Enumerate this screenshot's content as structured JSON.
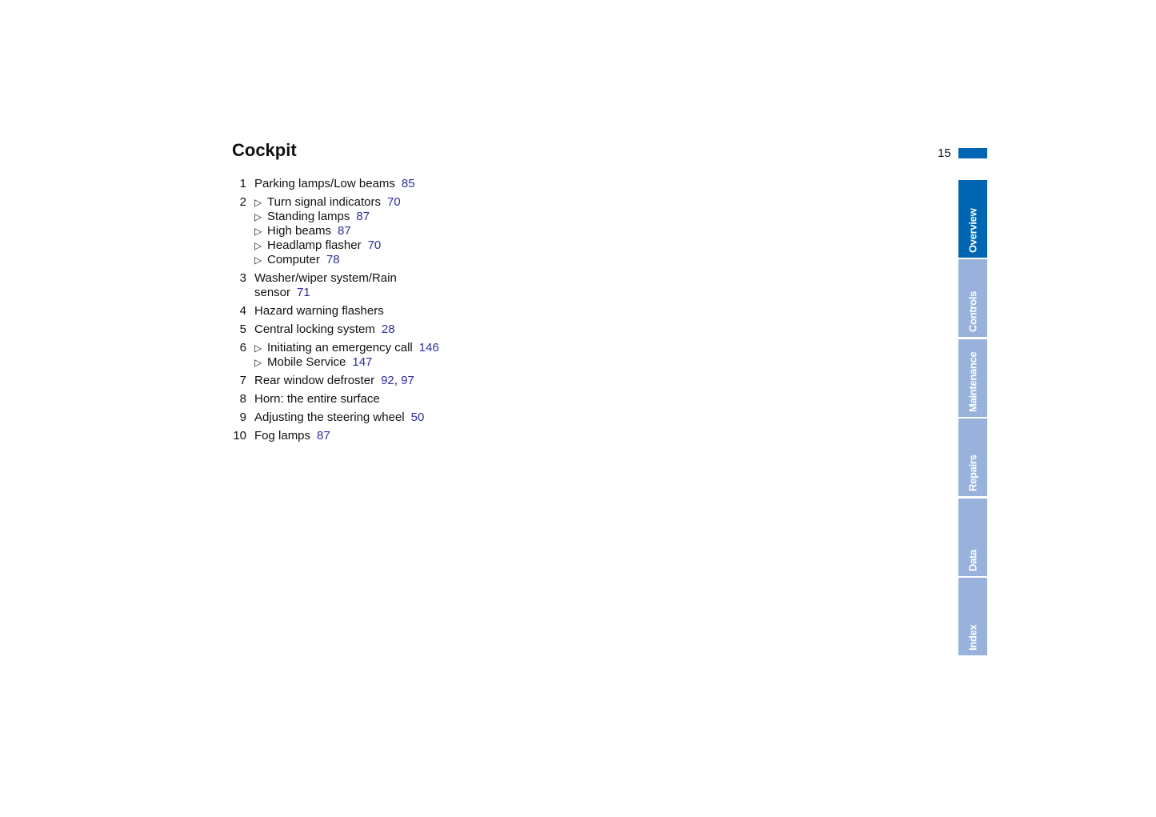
{
  "title": "Cockpit",
  "page_number": "15",
  "colors": {
    "accent": "#0066b3",
    "tab_inactive": "#98b2dc",
    "link": "#2e2e9e"
  },
  "items": [
    {
      "num": "1",
      "lines": [
        {
          "text": "Parking lamps/Low beams",
          "refs": [
            "85"
          ]
        }
      ]
    },
    {
      "num": "2",
      "sub": [
        {
          "text": "Turn signal indicators",
          "refs": [
            "70"
          ]
        },
        {
          "text": "Standing lamps",
          "refs": [
            "87"
          ]
        },
        {
          "text": "High beams",
          "refs": [
            "87"
          ]
        },
        {
          "text": "Headlamp flasher",
          "refs": [
            "70"
          ]
        },
        {
          "text": "Computer",
          "refs": [
            "78"
          ]
        }
      ]
    },
    {
      "num": "3",
      "lines": [
        {
          "text": "Washer/wiper system/Rain",
          "refs": []
        },
        {
          "text": "sensor",
          "refs": [
            "71"
          ]
        }
      ]
    },
    {
      "num": "4",
      "lines": [
        {
          "text": "Hazard warning flashers",
          "refs": []
        }
      ]
    },
    {
      "num": "5",
      "lines": [
        {
          "text": "Central locking system",
          "refs": [
            "28"
          ]
        }
      ]
    },
    {
      "num": "6",
      "sub": [
        {
          "text": "Initiating an emergency call",
          "refs": [
            "146"
          ]
        },
        {
          "text": "Mobile Service",
          "refs": [
            "147"
          ]
        }
      ]
    },
    {
      "num": "7",
      "lines": [
        {
          "text": "Rear window defroster",
          "refs": [
            "92",
            "97"
          ]
        }
      ]
    },
    {
      "num": "8",
      "lines": [
        {
          "text": "Horn: the entire surface",
          "refs": []
        }
      ]
    },
    {
      "num": "9",
      "lines": [
        {
          "text": "Adjusting the steering wheel",
          "refs": [
            "50"
          ]
        }
      ]
    },
    {
      "num": "10",
      "lines": [
        {
          "text": "Fog lamps",
          "refs": [
            "87"
          ]
        }
      ]
    }
  ],
  "bullet": "▷",
  "tabs": [
    {
      "label": "Overview",
      "active": true
    },
    {
      "label": "Controls"
    },
    {
      "label": "Maintenance"
    },
    {
      "label": "Repairs"
    },
    {
      "label": "Data"
    },
    {
      "label": "Index"
    }
  ]
}
